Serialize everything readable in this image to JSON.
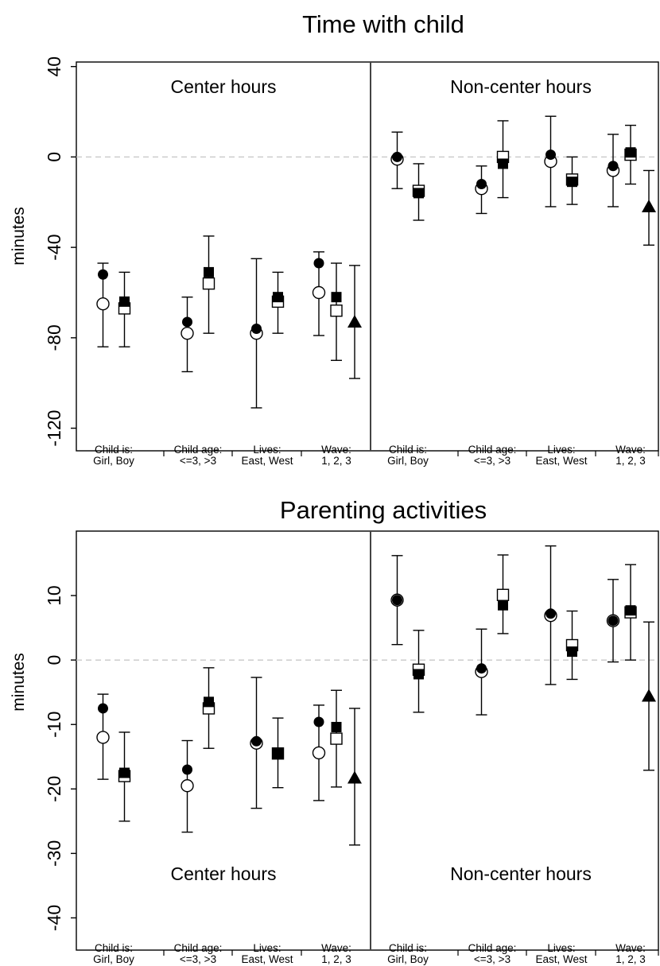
{
  "chart_data": [
    {
      "type": "errorbar",
      "title": "Time with child",
      "ylabel": "minutes",
      "ylim": [
        -130,
        42
      ],
      "yticks": [
        40,
        0,
        -40,
        -80,
        -120
      ],
      "zero_line": true,
      "panels": [
        "Center hours",
        "Non-center hours"
      ],
      "groups": [
        {
          "label": [
            "Child is:",
            "Girl, Boy"
          ]
        },
        {
          "label": [
            "Child age:",
            "<=3, >3"
          ]
        },
        {
          "label": [
            "Lives:",
            "East, West"
          ]
        },
        {
          "label": [
            "Wave:",
            "1, 2, 3"
          ]
        }
      ],
      "points": [
        {
          "panel": 0,
          "group": 0,
          "pos": 0,
          "marker": "circle-filled",
          "y": -52,
          "lo": null,
          "hi": null
        },
        {
          "panel": 0,
          "group": 0,
          "pos": 0,
          "marker": "circle-open",
          "y": -65,
          "lo": -84,
          "hi": -47
        },
        {
          "panel": 0,
          "group": 0,
          "pos": 1,
          "marker": "square-filled",
          "y": -64,
          "lo": null,
          "hi": null
        },
        {
          "panel": 0,
          "group": 0,
          "pos": 1,
          "marker": "square-open",
          "y": -67,
          "lo": -84,
          "hi": -51
        },
        {
          "panel": 0,
          "group": 1,
          "pos": 0,
          "marker": "circle-filled",
          "y": -73,
          "lo": null,
          "hi": null
        },
        {
          "panel": 0,
          "group": 1,
          "pos": 0,
          "marker": "circle-open",
          "y": -78,
          "lo": -95,
          "hi": -62
        },
        {
          "panel": 0,
          "group": 1,
          "pos": 1,
          "marker": "square-filled",
          "y": -51,
          "lo": null,
          "hi": null
        },
        {
          "panel": 0,
          "group": 1,
          "pos": 1,
          "marker": "square-open",
          "y": -56,
          "lo": -78,
          "hi": -35
        },
        {
          "panel": 0,
          "group": 2,
          "pos": 0,
          "marker": "circle-filled",
          "y": -76,
          "lo": null,
          "hi": null
        },
        {
          "panel": 0,
          "group": 2,
          "pos": 0,
          "marker": "circle-open",
          "y": -78,
          "lo": -111,
          "hi": -45
        },
        {
          "panel": 0,
          "group": 2,
          "pos": 1,
          "marker": "square-filled",
          "y": -62,
          "lo": null,
          "hi": null
        },
        {
          "panel": 0,
          "group": 2,
          "pos": 1,
          "marker": "square-open",
          "y": -64,
          "lo": -78,
          "hi": -51
        },
        {
          "panel": 0,
          "group": 3,
          "pos": 0,
          "marker": "circle-filled",
          "y": -47,
          "lo": null,
          "hi": null
        },
        {
          "panel": 0,
          "group": 3,
          "pos": 0,
          "marker": "circle-open",
          "y": -60,
          "lo": -79,
          "hi": -42
        },
        {
          "panel": 0,
          "group": 3,
          "pos": 1,
          "marker": "square-filled",
          "y": -62,
          "lo": null,
          "hi": null
        },
        {
          "panel": 0,
          "group": 3,
          "pos": 1,
          "marker": "square-open",
          "y": -68,
          "lo": -90,
          "hi": -47
        },
        {
          "panel": 0,
          "group": 3,
          "pos": 2,
          "marker": "triangle-filled",
          "y": -73,
          "lo": -98,
          "hi": -48
        },
        {
          "panel": 1,
          "group": 0,
          "pos": 0,
          "marker": "circle-filled",
          "y": 0,
          "lo": null,
          "hi": null
        },
        {
          "panel": 1,
          "group": 0,
          "pos": 0,
          "marker": "circle-open",
          "y": -1,
          "lo": -14,
          "hi": 11
        },
        {
          "panel": 1,
          "group": 0,
          "pos": 1,
          "marker": "square-filled",
          "y": -16,
          "lo": null,
          "hi": null
        },
        {
          "panel": 1,
          "group": 0,
          "pos": 1,
          "marker": "square-open",
          "y": -15,
          "lo": -28,
          "hi": -3
        },
        {
          "panel": 1,
          "group": 1,
          "pos": 0,
          "marker": "circle-filled",
          "y": -12,
          "lo": null,
          "hi": null
        },
        {
          "panel": 1,
          "group": 1,
          "pos": 0,
          "marker": "circle-open",
          "y": -14,
          "lo": -25,
          "hi": -4
        },
        {
          "panel": 1,
          "group": 1,
          "pos": 1,
          "marker": "square-filled",
          "y": -3,
          "lo": null,
          "hi": null
        },
        {
          "panel": 1,
          "group": 1,
          "pos": 1,
          "marker": "square-open",
          "y": 0,
          "lo": -18,
          "hi": 16
        },
        {
          "panel": 1,
          "group": 2,
          "pos": 0,
          "marker": "circle-filled",
          "y": 1,
          "lo": null,
          "hi": null
        },
        {
          "panel": 1,
          "group": 2,
          "pos": 0,
          "marker": "circle-open",
          "y": -2,
          "lo": -22,
          "hi": 18
        },
        {
          "panel": 1,
          "group": 2,
          "pos": 1,
          "marker": "square-filled",
          "y": -11,
          "lo": null,
          "hi": null
        },
        {
          "panel": 1,
          "group": 2,
          "pos": 1,
          "marker": "square-open",
          "y": -10,
          "lo": -21,
          "hi": 0
        },
        {
          "panel": 1,
          "group": 3,
          "pos": 0,
          "marker": "circle-filled",
          "y": -4,
          "lo": null,
          "hi": null
        },
        {
          "panel": 1,
          "group": 3,
          "pos": 0,
          "marker": "circle-open",
          "y": -6,
          "lo": -22,
          "hi": 10
        },
        {
          "panel": 1,
          "group": 3,
          "pos": 1,
          "marker": "square-filled",
          "y": 2,
          "lo": null,
          "hi": null
        },
        {
          "panel": 1,
          "group": 3,
          "pos": 1,
          "marker": "square-open",
          "y": 1,
          "lo": -12,
          "hi": 14
        },
        {
          "panel": 1,
          "group": 3,
          "pos": 2,
          "marker": "triangle-filled",
          "y": -22,
          "lo": -39,
          "hi": -6
        }
      ]
    },
    {
      "type": "errorbar",
      "title": "Parenting activities",
      "ylabel": "minutes",
      "ylim": [
        -45,
        20
      ],
      "yticks": [
        10,
        0,
        -10,
        -20,
        -30,
        -40
      ],
      "zero_line": true,
      "panels": [
        "Center hours",
        "Non-center hours"
      ],
      "groups": [
        {
          "label": [
            "Child is:",
            "Girl, Boy"
          ]
        },
        {
          "label": [
            "Child age:",
            "<=3, >3"
          ]
        },
        {
          "label": [
            "Lives:",
            "East, West"
          ]
        },
        {
          "label": [
            "Wave:",
            "1, 2, 3"
          ]
        }
      ],
      "points": [
        {
          "panel": 0,
          "group": 0,
          "pos": 0,
          "marker": "circle-filled",
          "y": -7.5,
          "lo": null,
          "hi": null
        },
        {
          "panel": 0,
          "group": 0,
          "pos": 0,
          "marker": "circle-open",
          "y": -12,
          "lo": -18.5,
          "hi": -5.3
        },
        {
          "panel": 0,
          "group": 0,
          "pos": 1,
          "marker": "square-filled",
          "y": -17.5,
          "lo": null,
          "hi": null
        },
        {
          "panel": 0,
          "group": 0,
          "pos": 1,
          "marker": "square-open",
          "y": -18,
          "lo": -25,
          "hi": -11.2
        },
        {
          "panel": 0,
          "group": 1,
          "pos": 0,
          "marker": "circle-filled",
          "y": -17,
          "lo": null,
          "hi": null
        },
        {
          "panel": 0,
          "group": 1,
          "pos": 0,
          "marker": "circle-open",
          "y": -19.5,
          "lo": -26.7,
          "hi": -12.5
        },
        {
          "panel": 0,
          "group": 1,
          "pos": 1,
          "marker": "square-filled",
          "y": -6.5,
          "lo": null,
          "hi": null
        },
        {
          "panel": 0,
          "group": 1,
          "pos": 1,
          "marker": "square-open",
          "y": -7.5,
          "lo": -13.7,
          "hi": -1.2
        },
        {
          "panel": 0,
          "group": 2,
          "pos": 0,
          "marker": "circle-filled",
          "y": -12.6,
          "lo": null,
          "hi": null
        },
        {
          "panel": 0,
          "group": 2,
          "pos": 0,
          "marker": "circle-open",
          "y": -12.9,
          "lo": -23,
          "hi": -2.7
        },
        {
          "panel": 0,
          "group": 2,
          "pos": 1,
          "marker": "square-filled",
          "y": -14.5,
          "lo": null,
          "hi": null
        },
        {
          "panel": 0,
          "group": 2,
          "pos": 1,
          "marker": "square-open",
          "y": -14.5,
          "lo": -19.8,
          "hi": -9
        },
        {
          "panel": 0,
          "group": 3,
          "pos": 0,
          "marker": "circle-filled",
          "y": -9.6,
          "lo": null,
          "hi": null
        },
        {
          "panel": 0,
          "group": 3,
          "pos": 0,
          "marker": "circle-open",
          "y": -14.4,
          "lo": -21.8,
          "hi": -7
        },
        {
          "panel": 0,
          "group": 3,
          "pos": 1,
          "marker": "square-filled",
          "y": -10.4,
          "lo": null,
          "hi": null
        },
        {
          "panel": 0,
          "group": 3,
          "pos": 1,
          "marker": "square-open",
          "y": -12.2,
          "lo": -19.7,
          "hi": -4.7
        },
        {
          "panel": 0,
          "group": 3,
          "pos": 2,
          "marker": "triangle-filled",
          "y": -18.3,
          "lo": -28.7,
          "hi": -7.5
        },
        {
          "panel": 1,
          "group": 0,
          "pos": 0,
          "marker": "circle-filled",
          "y": 9.3,
          "lo": null,
          "hi": null
        },
        {
          "panel": 1,
          "group": 0,
          "pos": 0,
          "marker": "circle-open",
          "y": 9.3,
          "lo": 2.4,
          "hi": 16.2
        },
        {
          "panel": 1,
          "group": 0,
          "pos": 1,
          "marker": "square-filled",
          "y": -2.2,
          "lo": null,
          "hi": null
        },
        {
          "panel": 1,
          "group": 0,
          "pos": 1,
          "marker": "square-open",
          "y": -1.5,
          "lo": -8.1,
          "hi": 4.6
        },
        {
          "panel": 1,
          "group": 1,
          "pos": 0,
          "marker": "circle-filled",
          "y": -1.3,
          "lo": null,
          "hi": null
        },
        {
          "panel": 1,
          "group": 1,
          "pos": 0,
          "marker": "circle-open",
          "y": -1.8,
          "lo": -8.5,
          "hi": 4.8
        },
        {
          "panel": 1,
          "group": 1,
          "pos": 1,
          "marker": "square-filled",
          "y": 8.5,
          "lo": null,
          "hi": null
        },
        {
          "panel": 1,
          "group": 1,
          "pos": 1,
          "marker": "square-open",
          "y": 10.1,
          "lo": 4.1,
          "hi": 16.3
        },
        {
          "panel": 1,
          "group": 2,
          "pos": 0,
          "marker": "circle-filled",
          "y": 7.2,
          "lo": null,
          "hi": null
        },
        {
          "panel": 1,
          "group": 2,
          "pos": 0,
          "marker": "circle-open",
          "y": 6.9,
          "lo": -3.8,
          "hi": 17.7
        },
        {
          "panel": 1,
          "group": 2,
          "pos": 1,
          "marker": "square-filled",
          "y": 1.3,
          "lo": null,
          "hi": null
        },
        {
          "panel": 1,
          "group": 2,
          "pos": 1,
          "marker": "square-open",
          "y": 2.3,
          "lo": -3,
          "hi": 7.6
        },
        {
          "panel": 1,
          "group": 3,
          "pos": 0,
          "marker": "circle-filled",
          "y": 6.1,
          "lo": null,
          "hi": null
        },
        {
          "panel": 1,
          "group": 3,
          "pos": 0,
          "marker": "circle-open",
          "y": 6.1,
          "lo": -0.3,
          "hi": 12.5
        },
        {
          "panel": 1,
          "group": 3,
          "pos": 1,
          "marker": "square-filled",
          "y": 7.7,
          "lo": null,
          "hi": null
        },
        {
          "panel": 1,
          "group": 3,
          "pos": 1,
          "marker": "square-open",
          "y": 7.4,
          "lo": 0,
          "hi": 14.8
        },
        {
          "panel": 1,
          "group": 3,
          "pos": 2,
          "marker": "triangle-filled",
          "y": -5.6,
          "lo": -17.1,
          "hi": 5.9
        }
      ]
    }
  ]
}
